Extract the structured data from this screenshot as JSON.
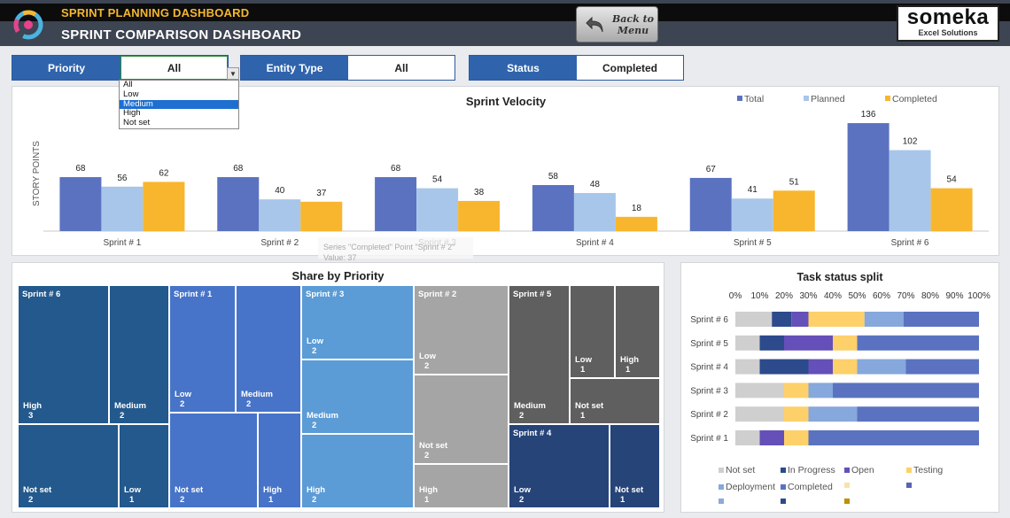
{
  "header": {
    "subtitle": "SPRINT PLANNING DASHBOARD",
    "title": "SPRINT COMPARISON DASHBOARD",
    "back_button": "Back to\nMenu",
    "brand_name": "someka",
    "brand_sub": "Excel Solutions"
  },
  "filters": [
    {
      "label": "Priority",
      "value": "All"
    },
    {
      "label": "Entity Type",
      "value": "All"
    },
    {
      "label": "Status",
      "value": "Completed"
    }
  ],
  "priority_dropdown": {
    "options": [
      "All",
      "Low",
      "Medium",
      "High",
      "Not set"
    ],
    "highlighted": "Medium"
  },
  "colors": {
    "header_bg": "#3d4452",
    "accent_orange": "#f5b731",
    "filter_blue": "#2f64ad",
    "total": "#5a72c0",
    "planned": "#a8c6ea",
    "completed": "#f8b62e"
  },
  "velocity_tooltip": "Series \"Completed\" Point \"Sprint # 2\"\nValue: 37",
  "chart_data": [
    {
      "type": "bar",
      "title": "Sprint Velocity",
      "ylabel": "STORY POINTS",
      "categories": [
        "Sprint # 1",
        "Sprint # 2",
        "Sprint # 3",
        "Sprint # 4",
        "Sprint # 5",
        "Sprint # 6"
      ],
      "series": [
        {
          "name": "Total",
          "values": [
            68,
            68,
            68,
            58,
            67,
            136
          ],
          "color": "#5a72c0"
        },
        {
          "name": "Planned",
          "values": [
            56,
            40,
            54,
            48,
            41,
            102
          ],
          "color": "#a8c6ea"
        },
        {
          "name": "Completed",
          "values": [
            62,
            37,
            38,
            18,
            51,
            54
          ],
          "color": "#f8b62e"
        }
      ],
      "ylim": [
        0,
        145
      ],
      "legend": "top-right",
      "grid": false
    },
    {
      "type": "treemap",
      "title": "Share by Priority",
      "groups": [
        {
          "name": "Sprint # 6",
          "color": "#23598c",
          "items": [
            {
              "label": "High",
              "value": 3
            },
            {
              "label": "Medium",
              "value": 2
            },
            {
              "label": "Not set",
              "value": 2
            },
            {
              "label": "Low",
              "value": 1
            }
          ]
        },
        {
          "name": "Sprint # 1",
          "color": "#4774c8",
          "items": [
            {
              "label": "Low",
              "value": 2
            },
            {
              "label": "Medium",
              "value": 2
            },
            {
              "label": "Not set",
              "value": 2
            },
            {
              "label": "High",
              "value": 1
            }
          ]
        },
        {
          "name": "Sprint # 3",
          "color": "#5b9bd6",
          "items": [
            {
              "label": "Low",
              "value": 2
            },
            {
              "label": "Medium",
              "value": 2
            },
            {
              "label": "High",
              "value": 2
            }
          ]
        },
        {
          "name": "Sprint # 2",
          "color": "#a5a5a5",
          "items": [
            {
              "label": "Low",
              "value": 2
            },
            {
              "label": "Not set",
              "value": 2
            },
            {
              "label": "High",
              "value": 1
            }
          ]
        },
        {
          "name": "Sprint # 5",
          "color": "#5f5f5f",
          "items": [
            {
              "label": "Medium",
              "value": 2
            },
            {
              "label": "Low",
              "value": 1
            },
            {
              "label": "High",
              "value": 1
            },
            {
              "label": "Not set",
              "value": 1
            }
          ]
        },
        {
          "name": "Sprint # 4",
          "color": "#264478",
          "items": [
            {
              "label": "Low",
              "value": 2
            },
            {
              "label": "Not set",
              "value": 1
            }
          ]
        }
      ]
    },
    {
      "type": "stacked-bar-horizontal",
      "title": "Task status split",
      "xlim": [
        0,
        100
      ],
      "xticks": [
        "0%",
        "10%",
        "20%",
        "30%",
        "40%",
        "50%",
        "60%",
        "70%",
        "80%",
        "90%",
        "100%"
      ],
      "categories": [
        "Sprint # 6",
        "Sprint # 5",
        "Sprint # 4",
        "Sprint # 3",
        "Sprint # 2",
        "Sprint # 1"
      ],
      "series": [
        {
          "name": "Not set",
          "color": "#cfcfcf",
          "values": [
            15,
            10,
            10,
            20,
            20,
            10
          ]
        },
        {
          "name": "In Progress",
          "color": "#2c4a8c",
          "values": [
            8,
            10,
            20,
            0,
            0,
            0
          ]
        },
        {
          "name": "Open",
          "color": "#6450b8",
          "values": [
            7,
            20,
            10,
            0,
            0,
            10
          ]
        },
        {
          "name": "Testing",
          "color": "#fdd06a",
          "values": [
            23,
            10,
            10,
            10,
            10,
            10
          ]
        },
        {
          "name": "Deployment",
          "color": "#86a8dc",
          "values": [
            16,
            0,
            20,
            10,
            20,
            0
          ]
        },
        {
          "name": "Completed",
          "color": "#5a72c0",
          "values": [
            31,
            50,
            30,
            60,
            50,
            70
          ]
        }
      ],
      "legend": "bottom",
      "extra_legend_colors": [
        "#f9e2a9",
        "#5b62b8",
        "#8ea9db",
        "#2c4a8c",
        "#bf9000"
      ]
    }
  ]
}
